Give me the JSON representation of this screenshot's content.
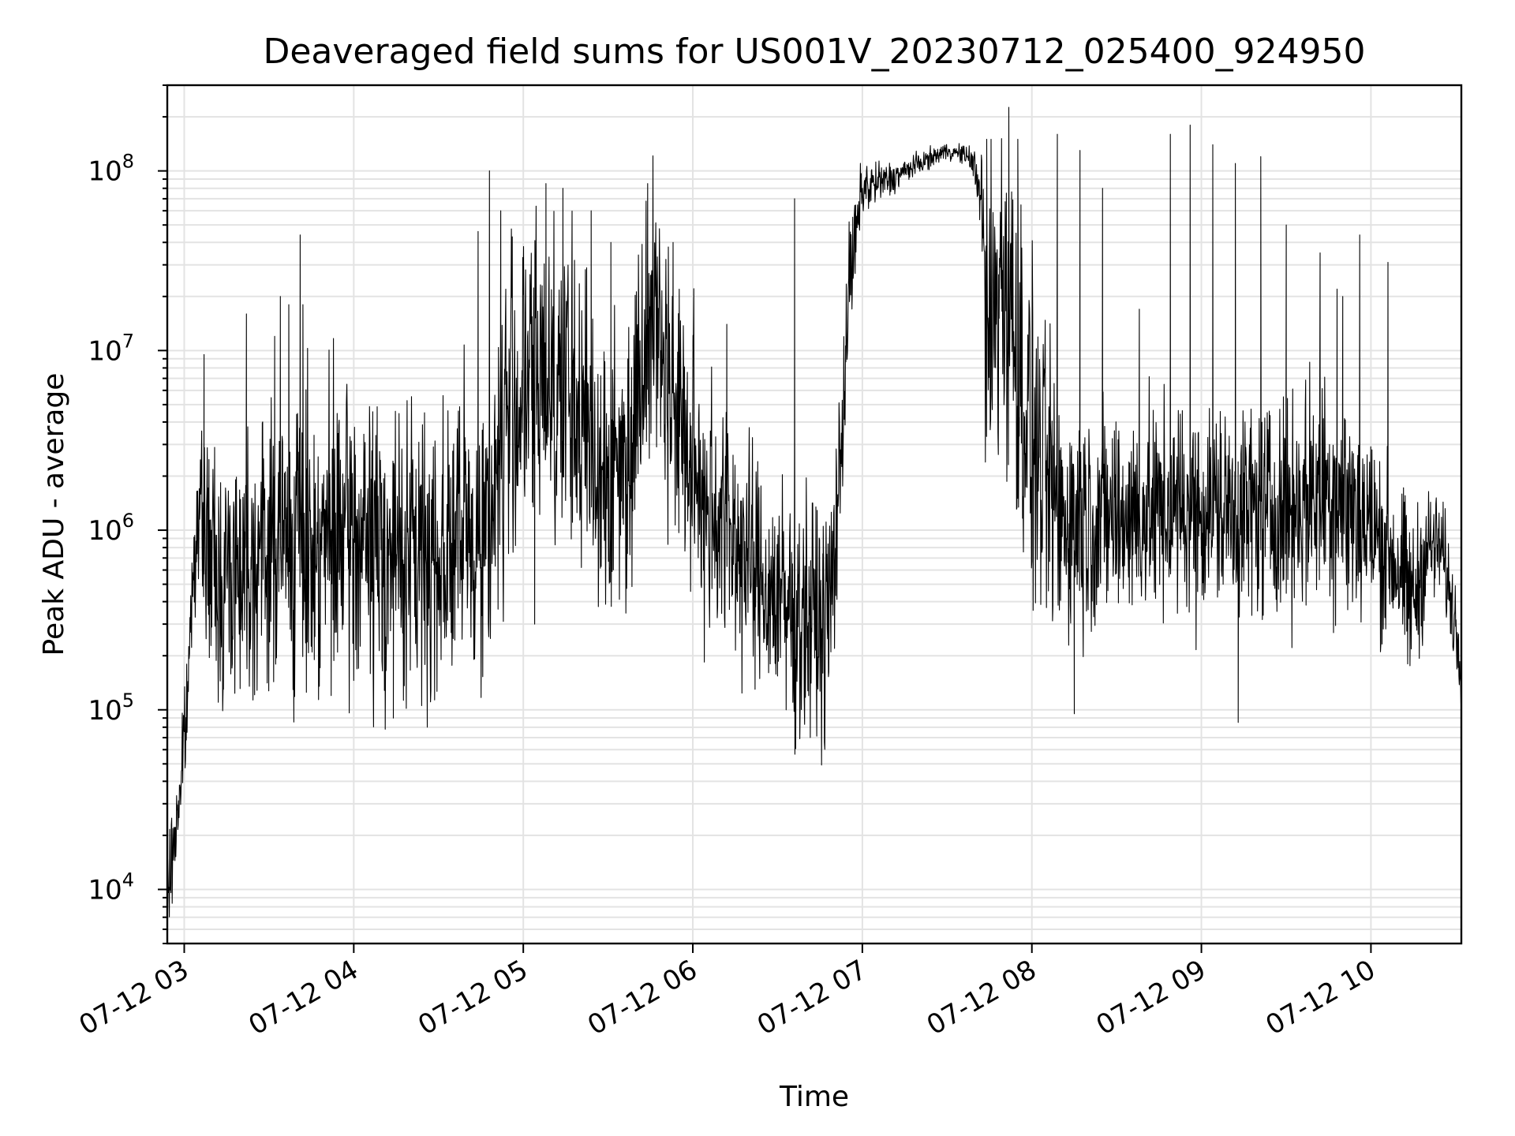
{
  "chart_data": {
    "type": "line",
    "title": "Deaveraged field sums for US001V_20230712_025400_924950",
    "xlabel": "Time",
    "ylabel": "Peak ADU - average",
    "yscale": "log",
    "grid": true,
    "ylim": [
      5000,
      300000000
    ],
    "xlim": [
      "2023-07-12 02:54",
      "2023-07-12 10:32"
    ],
    "x_ticks": [
      {
        "label": "07-12 03",
        "time": "2023-07-12 03:00"
      },
      {
        "label": "07-12 04",
        "time": "2023-07-12 04:00"
      },
      {
        "label": "07-12 05",
        "time": "2023-07-12 05:00"
      },
      {
        "label": "07-12 06",
        "time": "2023-07-12 06:00"
      },
      {
        "label": "07-12 07",
        "time": "2023-07-12 07:00"
      },
      {
        "label": "07-12 08",
        "time": "2023-07-12 08:00"
      },
      {
        "label": "07-12 09",
        "time": "2023-07-12 09:00"
      },
      {
        "label": "07-12 10",
        "time": "2023-07-12 10:00"
      }
    ],
    "y_ticks": [
      {
        "base": "10",
        "exp": "4",
        "value": 10000
      },
      {
        "base": "10",
        "exp": "5",
        "value": 100000
      },
      {
        "base": "10",
        "exp": "6",
        "value": 1000000
      },
      {
        "base": "10",
        "exp": "7",
        "value": 10000000
      },
      {
        "base": "10",
        "exp": "8",
        "value": 100000000
      }
    ],
    "series": [
      {
        "color": "#000000",
        "baseline": {
          "x": [
            "2023-07-12 02:54",
            "2023-07-12 02:58",
            "2023-07-12 03:01",
            "2023-07-12 03:03",
            "2023-07-12 03:05",
            "2023-07-12 03:07",
            "2023-07-12 03:09",
            "2023-07-12 03:12",
            "2023-07-12 03:20",
            "2023-07-12 03:40",
            "2023-07-12 04:00",
            "2023-07-12 04:20",
            "2023-07-12 04:40",
            "2023-07-12 04:47",
            "2023-07-12 04:55",
            "2023-07-12 05:10",
            "2023-07-12 05:30",
            "2023-07-12 05:37",
            "2023-07-12 05:45",
            "2023-07-12 06:00",
            "2023-07-12 06:15",
            "2023-07-12 06:25",
            "2023-07-12 06:35",
            "2023-07-12 06:48",
            "2023-07-12 06:52",
            "2023-07-12 06:55",
            "2023-07-12 07:00",
            "2023-07-12 07:10",
            "2023-07-12 07:20",
            "2023-07-12 07:30",
            "2023-07-12 07:38",
            "2023-07-12 07:42",
            "2023-07-12 07:44",
            "2023-07-12 07:50",
            "2023-07-12 08:00",
            "2023-07-12 08:10",
            "2023-07-12 08:30",
            "2023-07-12 09:00",
            "2023-07-12 09:30",
            "2023-07-12 09:45",
            "2023-07-12 10:00",
            "2023-07-12 10:08",
            "2023-07-12 10:15",
            "2023-07-12 10:20",
            "2023-07-12 10:25",
            "2023-07-12 10:32"
          ],
          "y": [
            9000,
            30000,
            100000,
            600000,
            1200000,
            1000000,
            700000,
            500000,
            700000,
            900000,
            900000,
            700000,
            900000,
            1000000,
            5000000,
            8000000,
            2000000,
            2500000,
            20000000,
            2000000,
            900000,
            500000,
            350000,
            300000,
            2000000,
            20000000,
            80000000,
            90000000,
            110000000,
            130000000,
            120000000,
            80000000,
            10000000,
            30000000,
            3000000,
            1200000,
            1200000,
            1300000,
            1300000,
            1800000,
            1000000,
            700000,
            400000,
            800000,
            800000,
            200000
          ],
          "spread": [
            0.25,
            0.2,
            0.25,
            0.2,
            0.3,
            0.4,
            0.6,
            0.6,
            0.6,
            0.7,
            0.7,
            0.7,
            0.7,
            0.7,
            0.8,
            0.8,
            0.7,
            0.7,
            0.6,
            0.7,
            0.6,
            0.5,
            0.6,
            0.6,
            0.4,
            0.3,
            0.15,
            0.08,
            0.05,
            0.04,
            0.05,
            0.2,
            0.9,
            0.9,
            0.8,
            0.6,
            0.5,
            0.5,
            0.5,
            0.6,
            0.5,
            0.4,
            0.4,
            0.3,
            0.25,
            0.2
          ]
        },
        "spikes": [
          {
            "x": "2023-07-12 03:07",
            "y": 9500000
          },
          {
            "x": "2023-07-12 03:22",
            "y": 16000000
          },
          {
            "x": "2023-07-12 03:32",
            "y": 12000000
          },
          {
            "x": "2023-07-12 03:34",
            "y": 20000000
          },
          {
            "x": "2023-07-12 03:37",
            "y": 18000000
          },
          {
            "x": "2023-07-12 03:41",
            "y": 44000000
          },
          {
            "x": "2023-07-12 03:42",
            "y": 18000000
          },
          {
            "x": "2023-07-12 04:37",
            "y": 4600000
          },
          {
            "x": "2023-07-12 04:44",
            "y": 46000000
          },
          {
            "x": "2023-07-12 04:48",
            "y": 100000000
          },
          {
            "x": "2023-07-12 04:52",
            "y": 60000000
          },
          {
            "x": "2023-07-12 05:08",
            "y": 85000000
          },
          {
            "x": "2023-07-12 05:14",
            "y": 80000000
          },
          {
            "x": "2023-07-12 05:24",
            "y": 60000000
          },
          {
            "x": "2023-07-12 05:31",
            "y": 40000000
          },
          {
            "x": "2023-07-12 05:44",
            "y": 85000000
          },
          {
            "x": "2023-07-12 05:53",
            "y": 40000000
          },
          {
            "x": "2023-07-12 06:12",
            "y": 14000000
          },
          {
            "x": "2023-07-12 06:36",
            "y": 70000000
          },
          {
            "x": "2023-07-12 07:44",
            "y": 150000000
          },
          {
            "x": "2023-07-12 07:55",
            "y": 150000000
          },
          {
            "x": "2023-07-12 08:09",
            "y": 160000000
          },
          {
            "x": "2023-07-12 08:17",
            "y": 130000000
          },
          {
            "x": "2023-07-12 08:25",
            "y": 80000000
          },
          {
            "x": "2023-07-12 08:38",
            "y": 17000000
          },
          {
            "x": "2023-07-12 08:49",
            "y": 160000000
          },
          {
            "x": "2023-07-12 08:56",
            "y": 180000000
          },
          {
            "x": "2023-07-12 09:04",
            "y": 140000000
          },
          {
            "x": "2023-07-12 09:12",
            "y": 110000000
          },
          {
            "x": "2023-07-12 09:21",
            "y": 120000000
          },
          {
            "x": "2023-07-12 09:30",
            "y": 50000000
          },
          {
            "x": "2023-07-12 09:42",
            "y": 35000000
          },
          {
            "x": "2023-07-12 09:48",
            "y": 22000000
          },
          {
            "x": "2023-07-12 09:50",
            "y": 20000000
          },
          {
            "x": "2023-07-12 09:56",
            "y": 44000000
          },
          {
            "x": "2023-07-12 10:06",
            "y": 31000000
          }
        ],
        "dips": [
          {
            "x": "2023-07-12 03:17",
            "y": 180000
          },
          {
            "x": "2023-07-12 03:46",
            "y": 190000
          },
          {
            "x": "2023-07-12 03:52",
            "y": 120000
          },
          {
            "x": "2023-07-12 04:14",
            "y": 90000
          },
          {
            "x": "2023-07-12 04:26",
            "y": 80000
          },
          {
            "x": "2023-07-12 05:04",
            "y": 300000
          },
          {
            "x": "2023-07-12 06:22",
            "y": 130000
          },
          {
            "x": "2023-07-12 06:33",
            "y": 100000
          },
          {
            "x": "2023-07-12 06:46",
            "y": 160000
          },
          {
            "x": "2023-07-12 08:15",
            "y": 95000
          },
          {
            "x": "2023-07-12 09:13",
            "y": 85000
          },
          {
            "x": "2023-07-12 10:13",
            "y": 180000
          }
        ]
      }
    ]
  }
}
